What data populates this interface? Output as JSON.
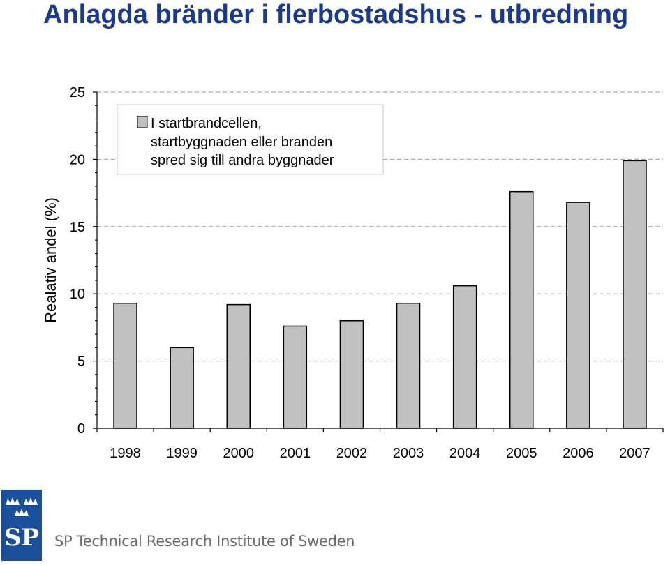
{
  "title": "Anlagda bränder i flerbostadshus - utbredning",
  "org_name": "SP Technical Research Institute of Sweden",
  "logo_text": "SP",
  "colors": {
    "title": "#1a3a8c",
    "bar_fill": "#c0c0c0",
    "bar_stroke": "#000000",
    "grid": "#999999",
    "logo_bg": "#1a4f9c",
    "org_text": "#6b6b6b"
  },
  "chart_data": {
    "type": "bar",
    "categories": [
      "1998",
      "1999",
      "2000",
      "2001",
      "2002",
      "2003",
      "2004",
      "2005",
      "2006",
      "2007"
    ],
    "series": [
      {
        "name": "I startbrandcellen, startbyggnaden eller branden spred sig till andra byggnader",
        "values": [
          9.3,
          6.0,
          9.2,
          7.6,
          8.0,
          9.3,
          10.6,
          17.6,
          16.8,
          19.9
        ]
      }
    ],
    "legend_lines": [
      "I startbrandcellen,",
      "startbyggnaden eller branden",
      "spred sig till andra byggnader"
    ],
    "ylabel": "Realativ andel (%)",
    "xlabel": "",
    "ylim": [
      0,
      25
    ],
    "yticks": [
      0,
      5,
      10,
      15,
      20,
      25
    ],
    "grid": true,
    "legend_position": "top-left"
  }
}
